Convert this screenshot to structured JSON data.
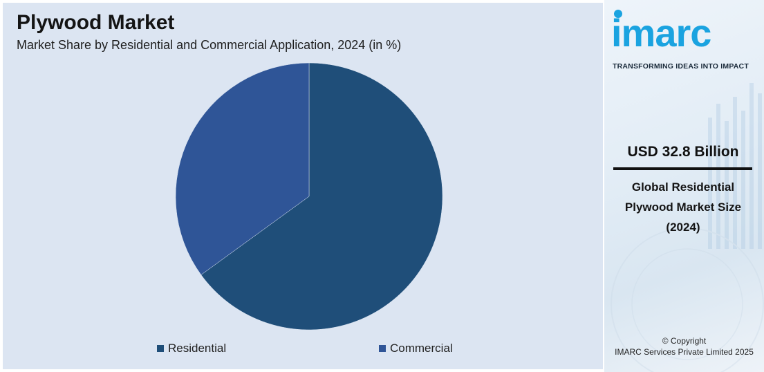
{
  "header": {
    "title": "Plywood Market",
    "subtitle": "Market Share by Residential and Commercial Application, 2024 (in %)"
  },
  "chart_data": {
    "type": "pie",
    "title": "Plywood Market",
    "subtitle": "Market Share by Residential and Commercial Application, 2024 (in %)",
    "categories": [
      "Residential",
      "Commercial"
    ],
    "values": [
      65,
      35
    ],
    "colors": [
      "#1f4e79",
      "#2f5597"
    ],
    "start_angle_deg": 0,
    "direction": "clockwise",
    "legend_position": "bottom"
  },
  "legend": {
    "items": [
      {
        "label": "Residential",
        "color": "#1f4e79"
      },
      {
        "label": "Commercial",
        "color": "#2f5597"
      }
    ]
  },
  "brand": {
    "logo_text": "imarc",
    "tagline": "TRANSFORMING IDEAS INTO IMPACT",
    "logo_color": "#1aa3e0"
  },
  "highlight": {
    "value": "USD 32.8 Billion",
    "description": "Global Residential Plywood Market Size (2024)"
  },
  "footer": {
    "copyright_line1": "© Copyright",
    "copyright_line2": "IMARC Services Private Limited 2025"
  }
}
